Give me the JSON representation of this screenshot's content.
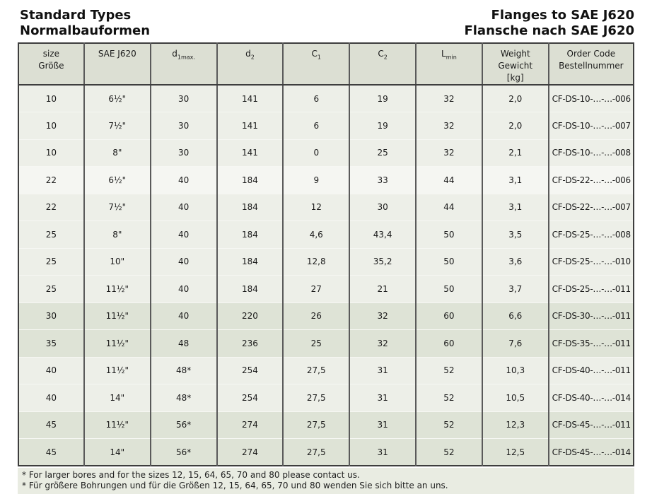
{
  "page": {
    "title_left_line1": "Standard Types",
    "title_left_line2": "Normalbauformen",
    "title_right_line1": "Flanges to SAE J620",
    "title_right_line2": "Flansche nach SAE J620"
  },
  "colors": {
    "page_bg": "#ffffff",
    "text": "#1a1a1a",
    "header_bg": "#dcdfd3",
    "row_light": "#edefe8",
    "row_white": "#f5f6f2",
    "row_dark": "#dee3d6",
    "footnote_bg": "#e9ece2",
    "border_outer": "#3e3e3e",
    "border_inner": "#5a5a5a",
    "row_divider": "#f6f7f3"
  },
  "table": {
    "headers": [
      {
        "lines": [
          "size",
          "Größe"
        ]
      },
      {
        "lines": [
          "SAE J620"
        ]
      },
      {
        "main": "d",
        "sub": "1max."
      },
      {
        "main": "d",
        "sub": "2"
      },
      {
        "main": "C",
        "sub": "1"
      },
      {
        "main": "C",
        "sub": "2"
      },
      {
        "main": "L",
        "sub": "min"
      },
      {
        "lines": [
          "Weight",
          "Gewicht",
          "[kg]"
        ]
      },
      {
        "lines": [
          "Order Code",
          "Bestellnummer"
        ]
      }
    ],
    "rows": [
      {
        "band": "light",
        "cells": [
          "10",
          "6½\"",
          "30",
          "141",
          "6",
          "19",
          "32",
          "2,0",
          "CF-DS-10-…-…-006"
        ]
      },
      {
        "band": "light",
        "cells": [
          "10",
          "7½\"",
          "30",
          "141",
          "6",
          "19",
          "32",
          "2,0",
          "CF-DS-10-…-…-007"
        ]
      },
      {
        "band": "light",
        "cells": [
          "10",
          "8\"",
          "30",
          "141",
          "0",
          "25",
          "32",
          "2,1",
          "CF-DS-10-…-…-008"
        ]
      },
      {
        "band": "white",
        "cells": [
          "22",
          "6½\"",
          "40",
          "184",
          "9",
          "33",
          "44",
          "3,1",
          "CF-DS-22-…-…-006"
        ]
      },
      {
        "band": "light",
        "cells": [
          "22",
          "7½\"",
          "40",
          "184",
          "12",
          "30",
          "44",
          "3,1",
          "CF-DS-22-…-…-007"
        ]
      },
      {
        "band": "light",
        "cells": [
          "25",
          "8\"",
          "40",
          "184",
          "4,6",
          "43,4",
          "50",
          "3,5",
          "CF-DS-25-…-…-008"
        ]
      },
      {
        "band": "light",
        "cells": [
          "25",
          "10\"",
          "40",
          "184",
          "12,8",
          "35,2",
          "50",
          "3,6",
          "CF-DS-25-…-…-010"
        ]
      },
      {
        "band": "light",
        "cells": [
          "25",
          "11½\"",
          "40",
          "184",
          "27",
          "21",
          "50",
          "3,7",
          "CF-DS-25-…-…-011"
        ]
      },
      {
        "band": "dark",
        "cells": [
          "30",
          "11½\"",
          "40",
          "220",
          "26",
          "32",
          "60",
          "6,6",
          "CF-DS-30-…-…-011"
        ]
      },
      {
        "band": "dark",
        "cells": [
          "35",
          "11½\"",
          "48",
          "236",
          "25",
          "32",
          "60",
          "7,6",
          "CF-DS-35-…-…-011"
        ]
      },
      {
        "band": "light",
        "cells": [
          "40",
          "11½\"",
          "48*",
          "254",
          "27,5",
          "31",
          "52",
          "10,3",
          "CF-DS-40-…-…-011"
        ]
      },
      {
        "band": "light",
        "cells": [
          "40",
          "14\"",
          "48*",
          "254",
          "27,5",
          "31",
          "52",
          "10,5",
          "CF-DS-40-…-…-014"
        ]
      },
      {
        "band": "dark",
        "cells": [
          "45",
          "11½\"",
          "56*",
          "274",
          "27,5",
          "31",
          "52",
          "12,3",
          "CF-DS-45-…-…-011"
        ]
      },
      {
        "band": "dark",
        "cells": [
          "45",
          "14\"",
          "56*",
          "274",
          "27,5",
          "31",
          "52",
          "12,5",
          "CF-DS-45-…-…-014"
        ]
      }
    ]
  },
  "footnotes": [
    "* For larger bores and for the sizes 12, 15, 64, 65, 70 and 80 please contact us.",
    "* Für größere Bohrungen und für die Größen 12, 15, 64, 65, 70 und 80 wenden Sie sich bitte an uns."
  ]
}
